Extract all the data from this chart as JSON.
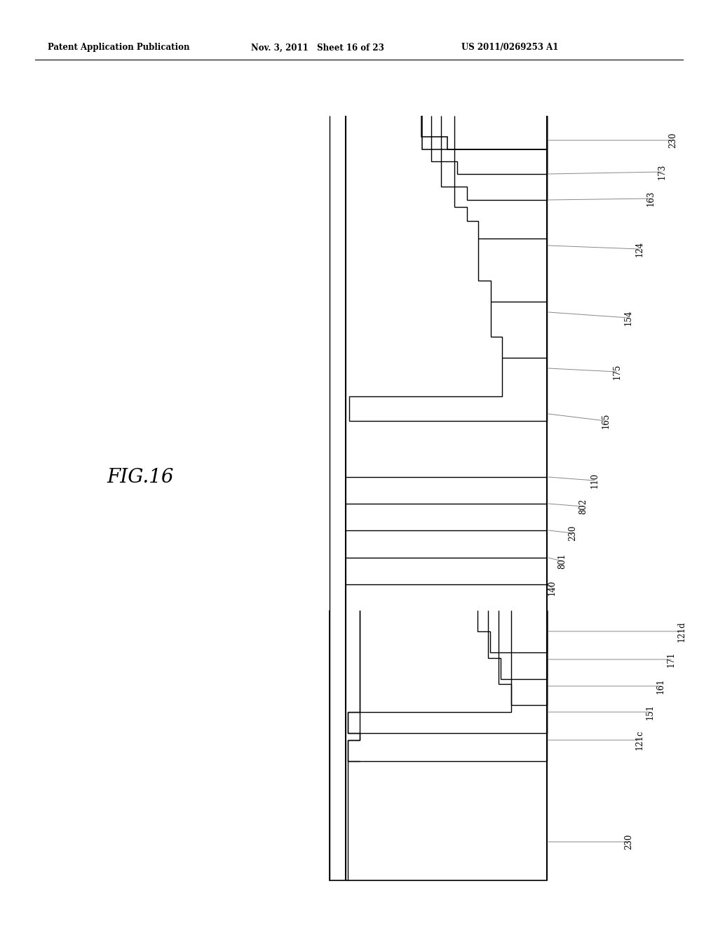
{
  "bg_color": "#ffffff",
  "line_color": "#000000",
  "header_left": "Patent Application Publication",
  "header_mid": "Nov. 3, 2011   Sheet 16 of 23",
  "header_right": "US 2011/0269253 A1",
  "fig_label": "FIG.16"
}
